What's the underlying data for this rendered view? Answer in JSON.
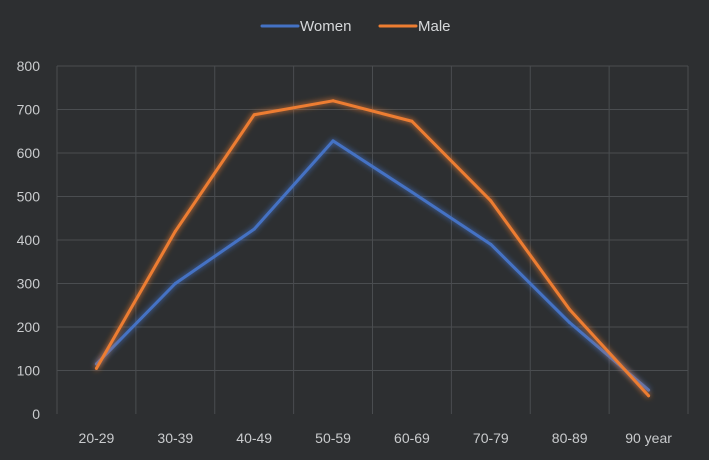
{
  "chart_data": {
    "type": "line",
    "categories": [
      "20-29",
      "30-39",
      "40-49",
      "50-59",
      "60-69",
      "70-79",
      "80-89",
      "90 year"
    ],
    "series": [
      {
        "name": "Women",
        "color": "#4472c4",
        "values": [
          115,
          300,
          425,
          628,
          510,
          390,
          210,
          55
        ]
      },
      {
        "name": "Male",
        "color": "#ed7d31",
        "values": [
          105,
          420,
          688,
          720,
          673,
          490,
          240,
          42
        ]
      }
    ],
    "ylim": [
      0,
      800
    ],
    "yticks": [
      "0",
      "100",
      "200",
      "300",
      "400",
      "500",
      "600",
      "700",
      "800"
    ],
    "grid": true,
    "legend": "top-center",
    "title": "",
    "xlabel": "",
    "ylabel": ""
  }
}
